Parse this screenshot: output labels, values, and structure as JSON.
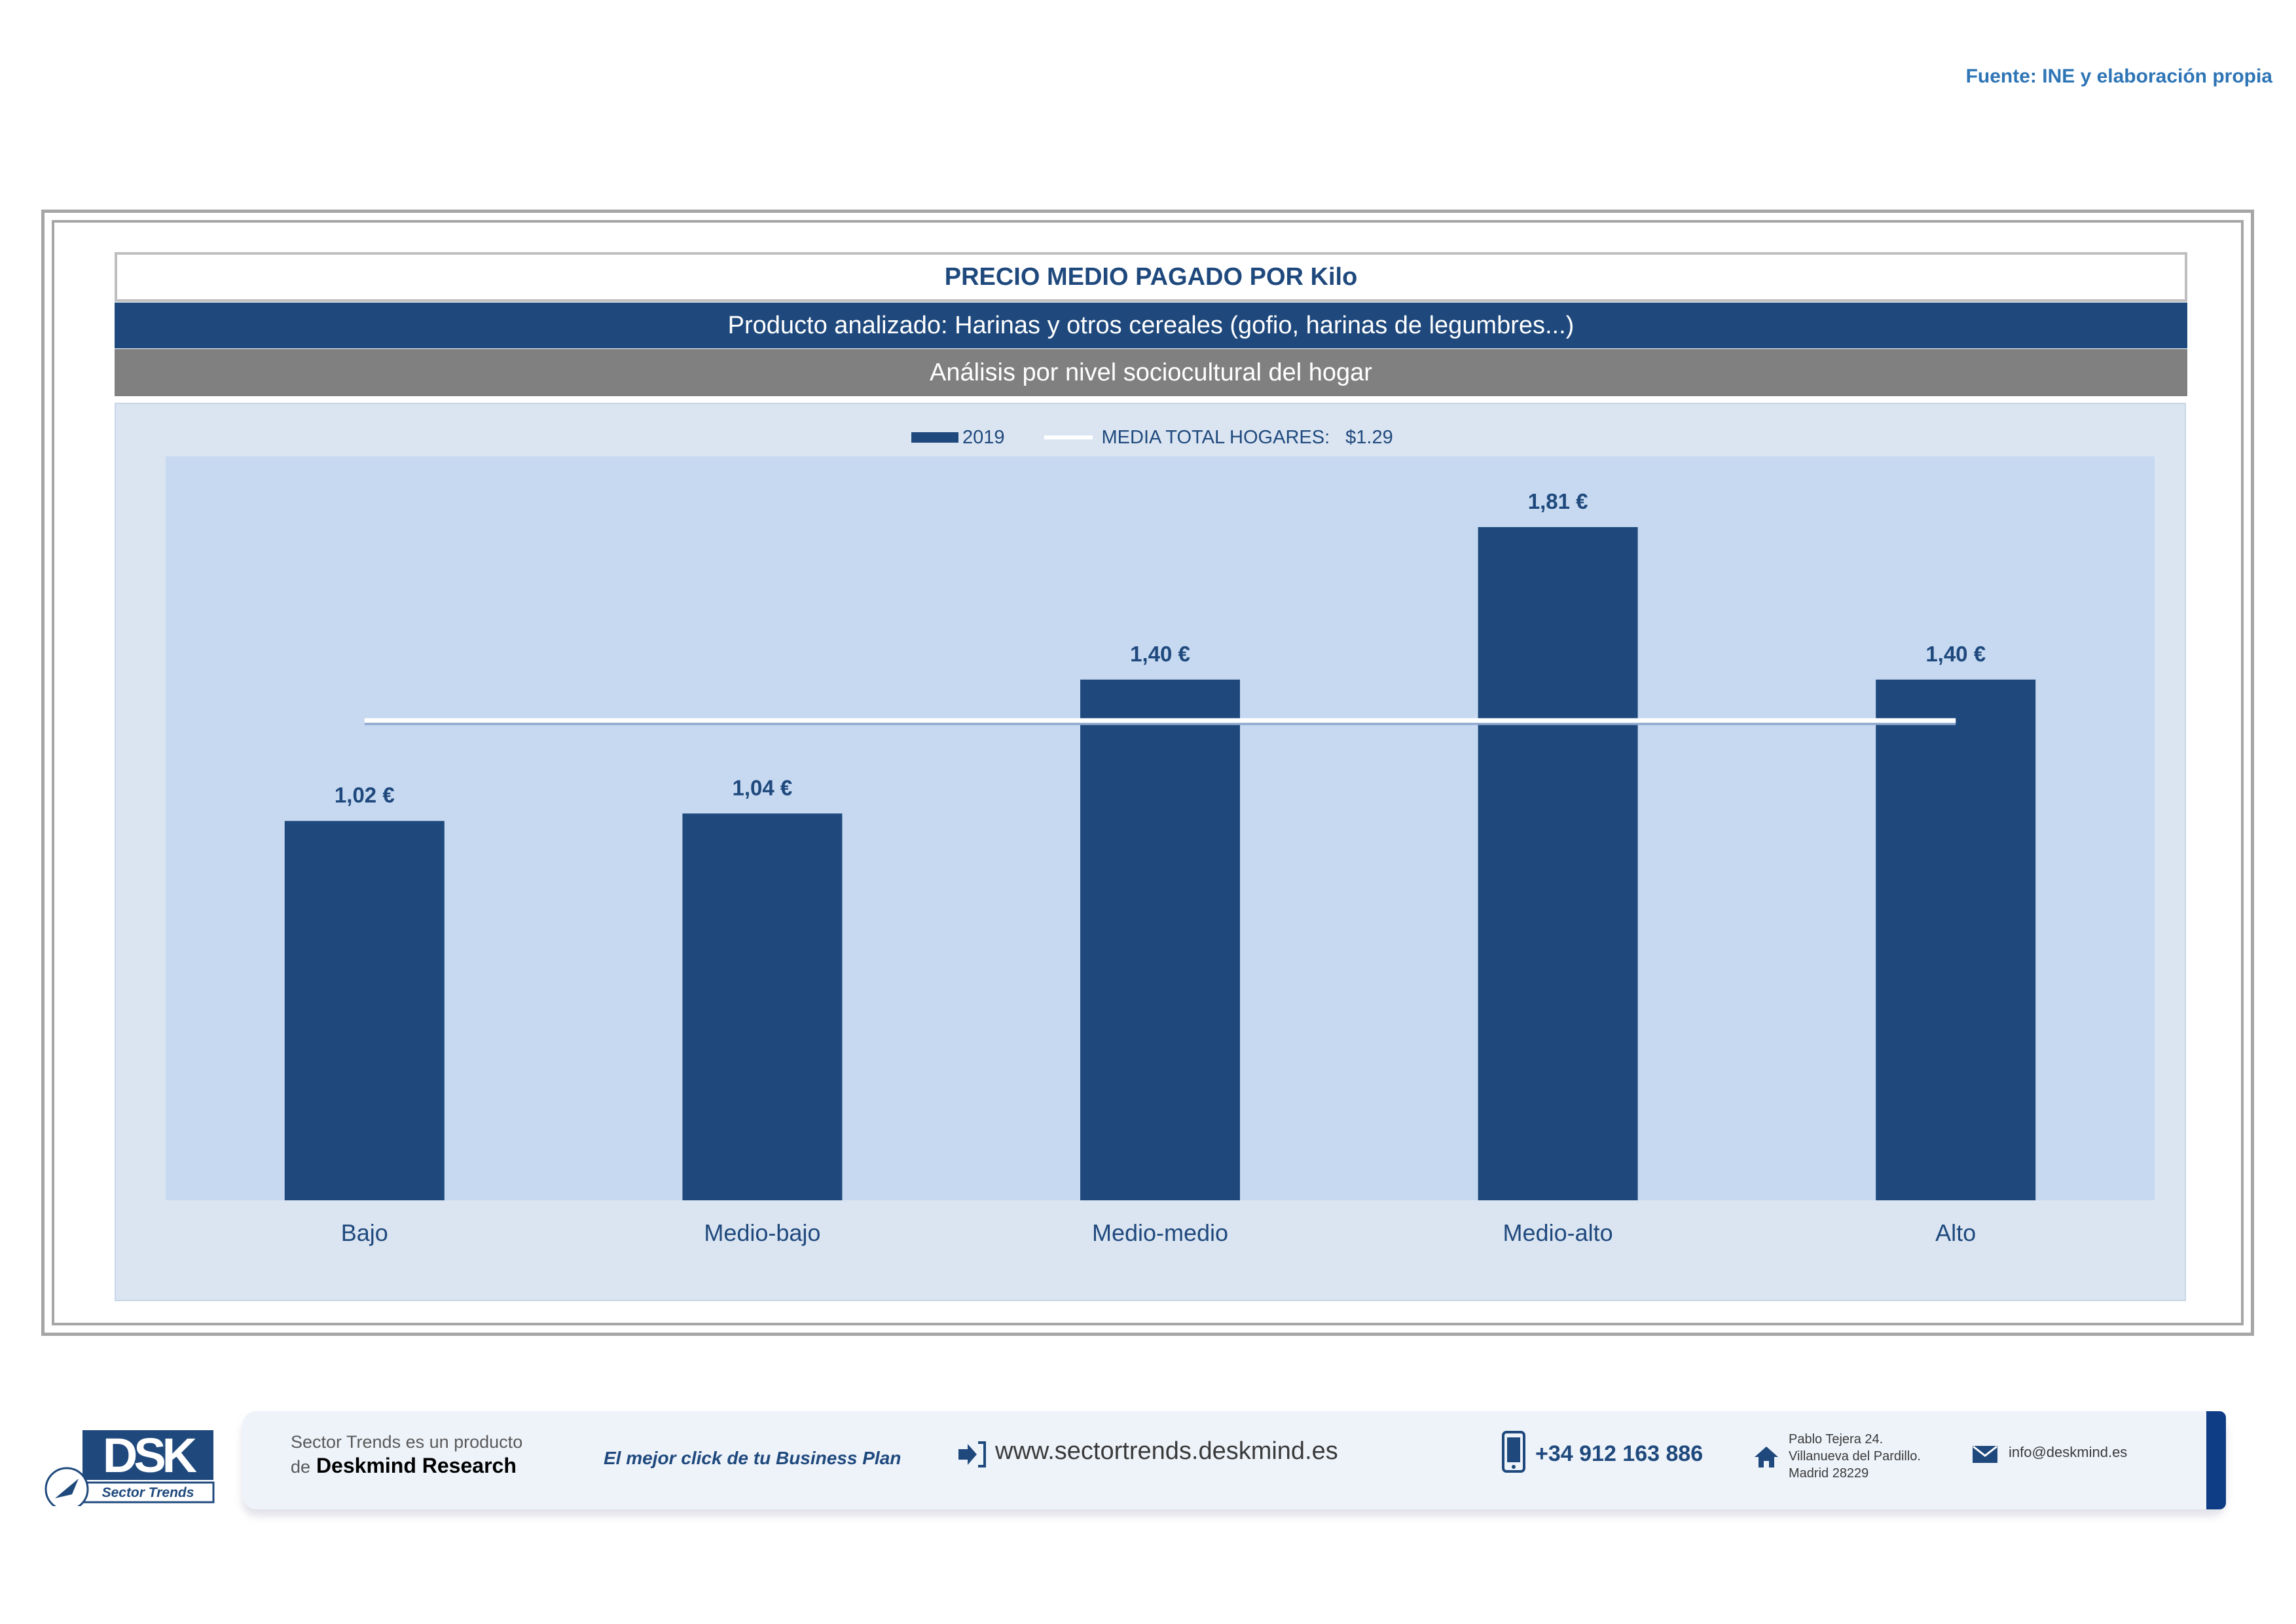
{
  "source": "Fuente: INE y elaboración propia",
  "header": {
    "title": "PRECIO MEDIO PAGADO POR Kilo",
    "product": "Producto analizado: Harinas y otros cereales (gofio, harinas de legumbres...)",
    "analysis": "Análisis por nivel sociocultural del hogar"
  },
  "legend": {
    "series_label": "2019",
    "line_label": "MEDIA TOTAL  HOGARES:",
    "line_value": "$1.29"
  },
  "chart_data": {
    "type": "bar",
    "categories": [
      "Bajo",
      "Medio-bajo",
      "Medio-medio",
      "Medio-alto",
      "Alto"
    ],
    "series": [
      {
        "name": "2019",
        "values": [
          1.02,
          1.04,
          1.4,
          1.81,
          1.4
        ],
        "labels": [
          "1,02 €",
          "1,04 €",
          "1,40 €",
          "1,81 €",
          "1,40 €"
        ]
      }
    ],
    "reference_line": {
      "name": "MEDIA TOTAL  HOGARES:",
      "value": 1.29
    },
    "ylim": [
      0,
      2.0
    ],
    "grid": false,
    "legend_position": "top-center",
    "colors": {
      "bar": "#1f497d",
      "line": "#ffffff",
      "plot_bg": "#c6d9f1",
      "label": "#1f497d"
    }
  },
  "footer": {
    "logo_text": "DSK",
    "logo_sub": "Sector Trends",
    "product_line1": "Sector Trends es un producto",
    "product_line2_prefix": "de",
    "product_line2_brand": "Deskmind Research",
    "tagline": "El mejor click de tu Business Plan",
    "website": "www.sectortrends.deskmind.es",
    "phone": "+34 912 163 886",
    "address1": "Pablo Tejera 24.",
    "address2": "Villanueva del Pardillo.",
    "address3": "Madrid 28229",
    "email": "info@deskmind.es",
    "icons": [
      "arrow-link-icon",
      "phone-icon",
      "home-icon",
      "mail-icon"
    ]
  }
}
